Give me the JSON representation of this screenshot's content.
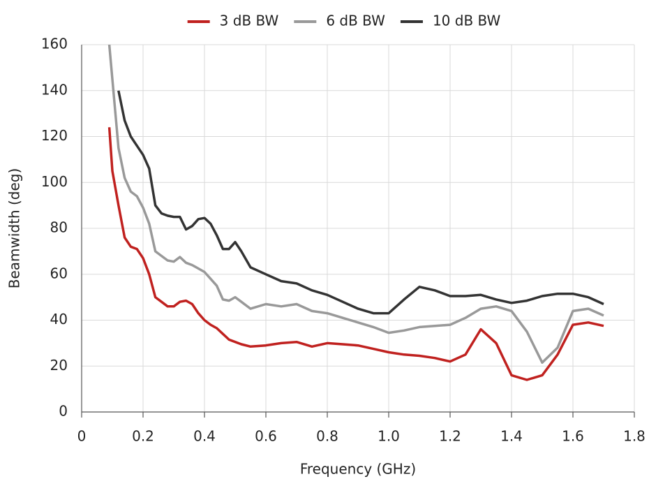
{
  "chart_data": {
    "type": "line",
    "xlabel": "Frequency (GHz)",
    "ylabel": "Beamwidth (deg)",
    "x": [
      0.09,
      0.1,
      0.12,
      0.14,
      0.16,
      0.18,
      0.2,
      0.22,
      0.24,
      0.26,
      0.28,
      0.3,
      0.32,
      0.34,
      0.36,
      0.38,
      0.4,
      0.42,
      0.44,
      0.46,
      0.48,
      0.5,
      0.52,
      0.55,
      0.6,
      0.65,
      0.7,
      0.75,
      0.8,
      0.85,
      0.9,
      0.95,
      1.0,
      1.05,
      1.1,
      1.15,
      1.2,
      1.25,
      1.3,
      1.35,
      1.4,
      1.45,
      1.5,
      1.55,
      1.6,
      1.65,
      1.7
    ],
    "series": [
      {
        "name": "3 dB BW",
        "color": "#c0211f",
        "values": [
          124,
          105,
          90,
          76,
          72,
          71,
          67,
          60,
          50,
          48,
          46,
          46,
          48,
          48.5,
          47,
          43,
          40,
          38,
          36.5,
          34,
          31.5,
          30.5,
          29.5,
          28.5,
          29,
          30,
          30.5,
          28.5,
          30,
          29.5,
          29,
          27.5,
          26,
          25,
          24.5,
          23.5,
          22,
          25,
          36,
          30,
          16,
          14,
          16,
          25,
          38,
          39,
          37.5
        ]
      },
      {
        "name": "6 dB BW",
        "color": "#999999",
        "values": [
          160,
          145,
          115,
          102,
          96,
          94,
          89,
          82,
          70,
          68,
          66,
          65.5,
          67.5,
          65,
          64,
          62.5,
          61,
          58,
          55,
          49,
          48.5,
          50,
          48,
          45,
          47,
          46,
          47,
          44,
          43,
          41,
          39,
          37,
          34.5,
          35.5,
          37,
          37.5,
          38,
          41,
          45,
          46,
          44,
          35,
          21.5,
          28,
          44,
          45,
          42
        ]
      },
      {
        "name": "10 dB BW",
        "color": "#333333",
        "values": [
          null,
          null,
          140,
          127,
          120,
          116,
          112,
          106,
          90,
          86.5,
          85.5,
          85,
          85,
          79.5,
          81,
          84,
          84.5,
          82,
          77,
          71,
          71,
          74,
          70,
          63,
          60,
          57,
          56,
          53,
          51,
          48,
          45,
          43,
          43,
          49,
          54.5,
          53,
          50.5,
          50.5,
          51,
          49,
          47.5,
          48.5,
          50.5,
          51.5,
          51.5,
          50,
          47
        ]
      }
    ],
    "xlim": [
      0,
      1.8
    ],
    "xticks": [
      0,
      0.2,
      0.4,
      0.6,
      0.8,
      {
        "value": 1,
        "label": "1.0"
      },
      1.2,
      1.4,
      1.6,
      1.8
    ],
    "ylim": [
      0,
      160
    ],
    "yticks": [
      0,
      20,
      40,
      60,
      80,
      100,
      120,
      140,
      160
    ],
    "grid": true,
    "legend": "top"
  }
}
